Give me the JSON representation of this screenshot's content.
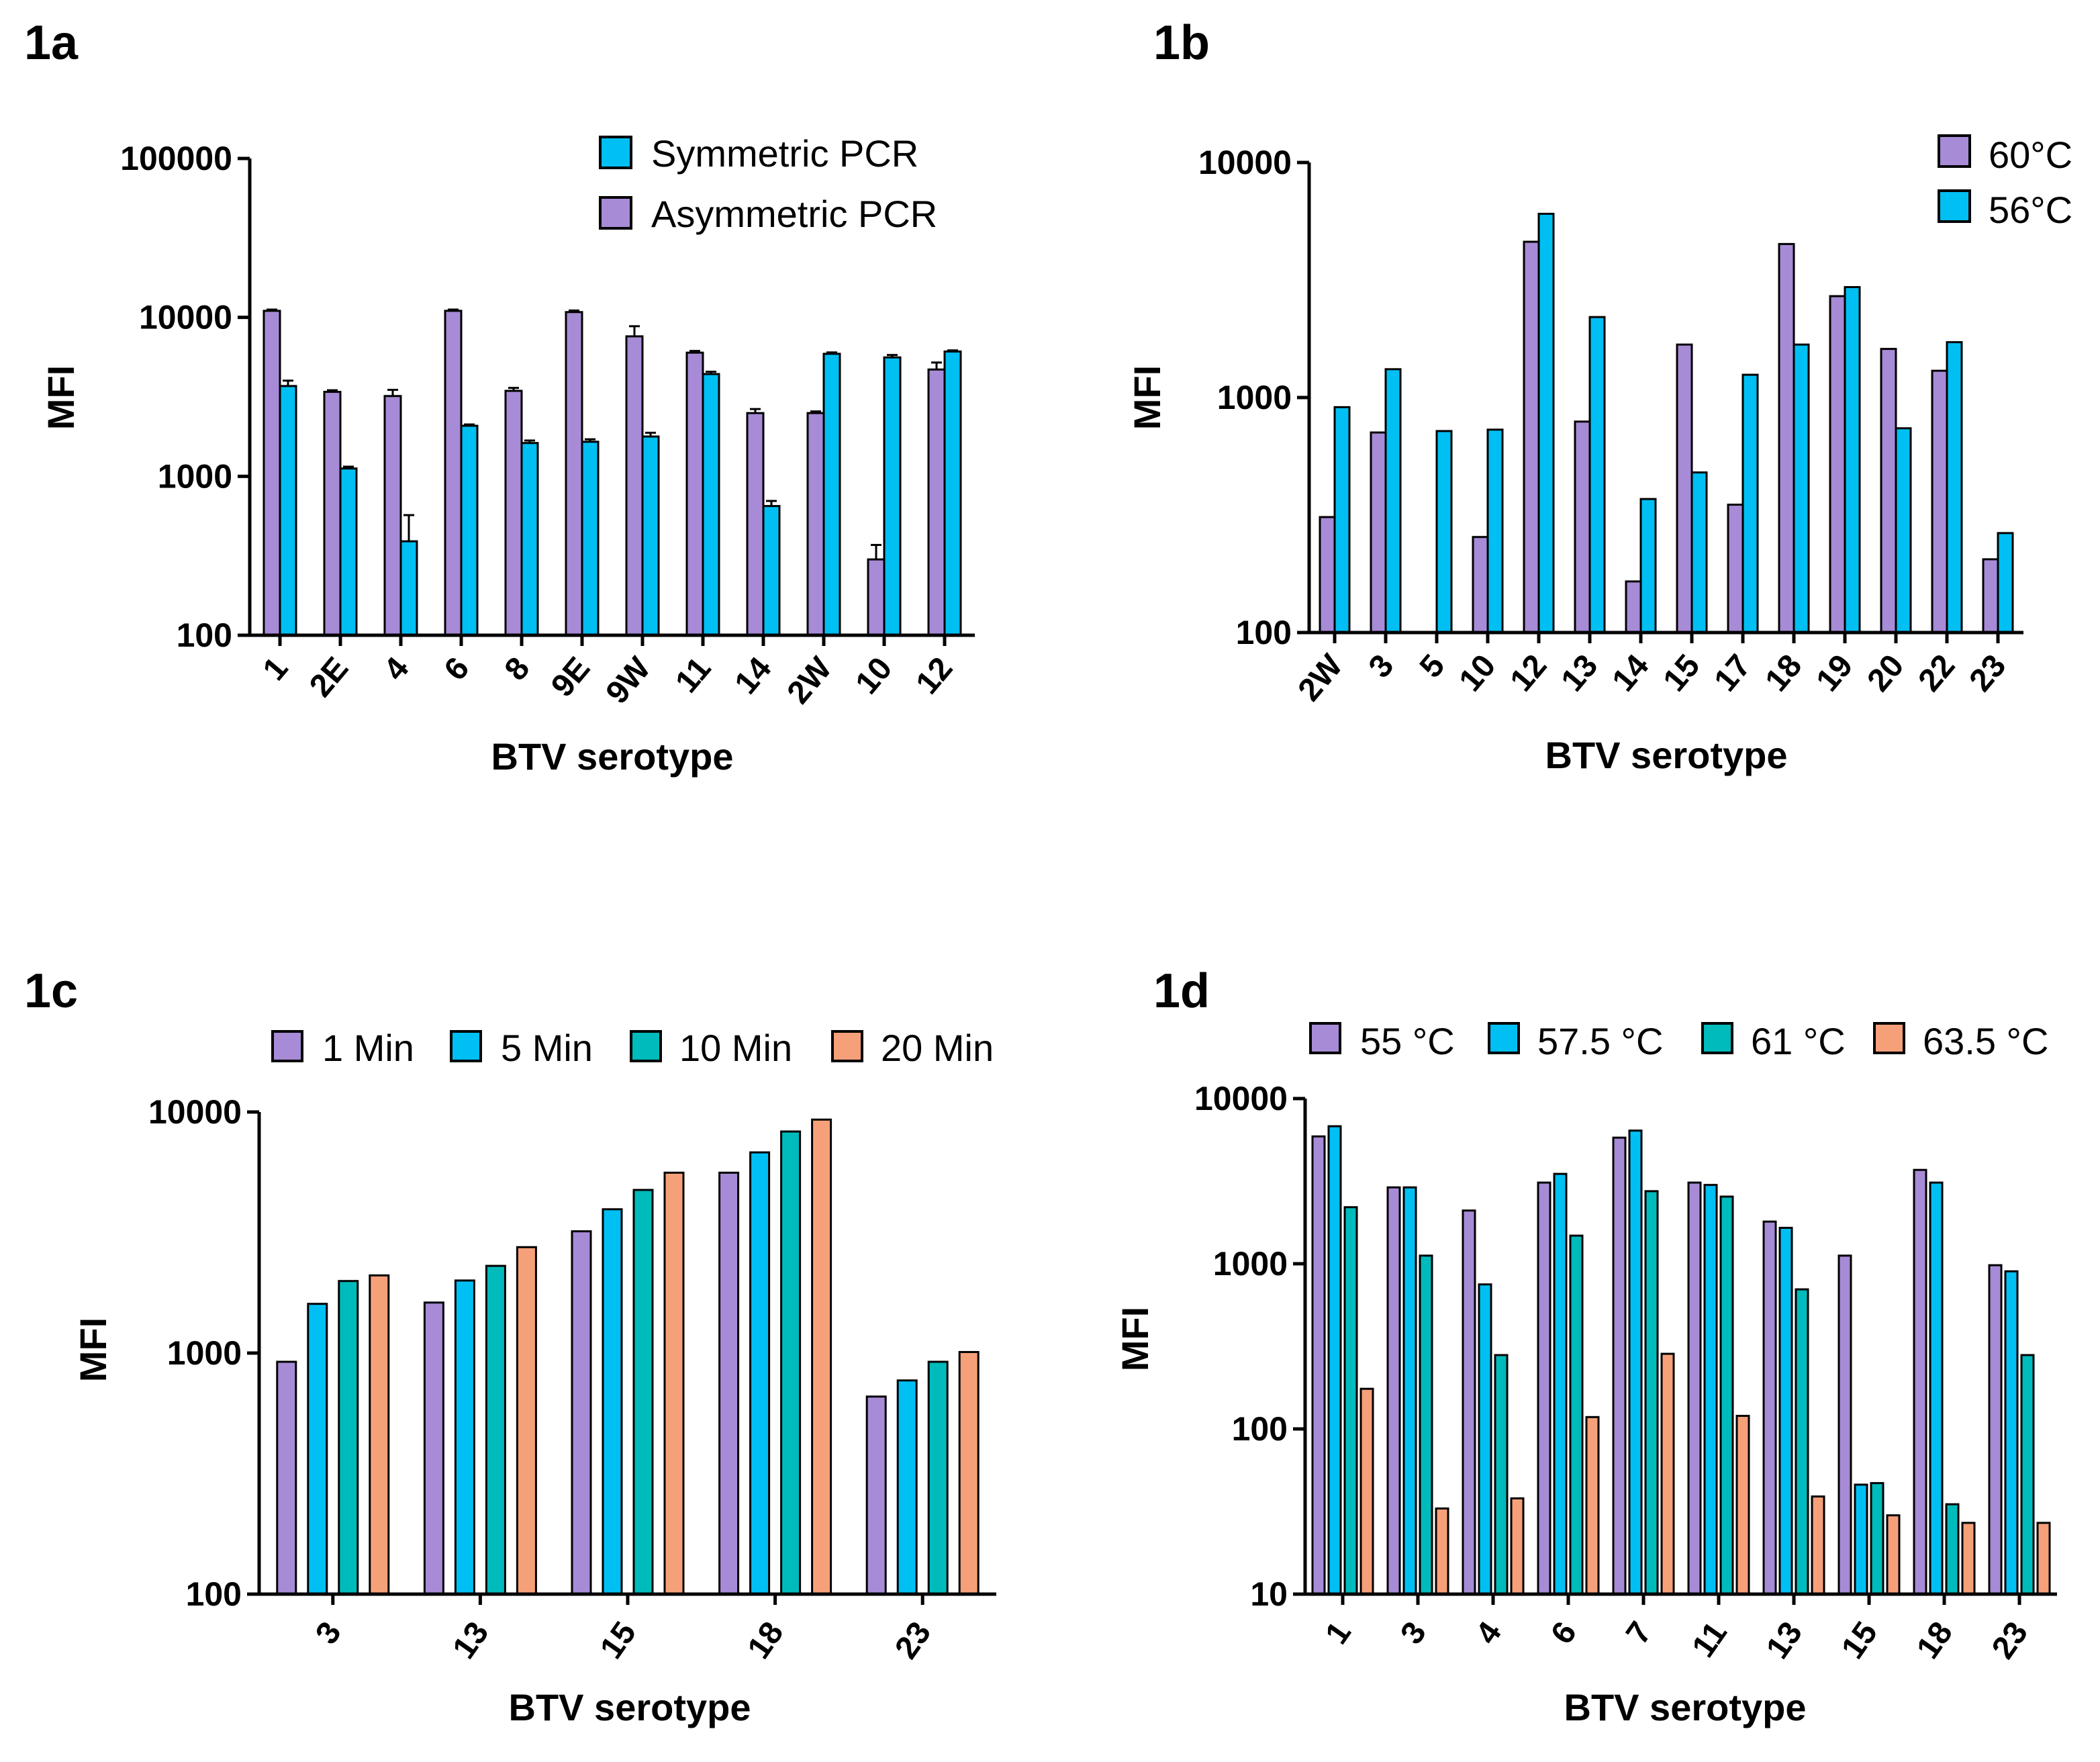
{
  "colors": {
    "purple": "#a78bd6",
    "blue": "#00bff3",
    "teal": "#00bbbb",
    "salmon": "#f6a07a",
    "axis": "#000000"
  },
  "chart_data": [
    {
      "panel": "1a",
      "type": "bar",
      "yscale": "log",
      "ylim": [
        100,
        100000
      ],
      "yticks": [
        "100",
        "1000",
        "10000",
        "100000"
      ],
      "ylabel": "MFI",
      "xlabel": "BTV serotype",
      "legend": "top-right",
      "categories": [
        "1",
        "2E",
        "4",
        "6",
        "8",
        "9E",
        "9W",
        "11",
        "14",
        "2W",
        "10",
        "12"
      ],
      "series": [
        {
          "name": "Asymmetric PCR",
          "color": "purple",
          "values": [
            11000,
            3400,
            3200,
            11000,
            3450,
            10800,
            7600,
            6000,
            2500,
            2500,
            300,
            4700
          ],
          "errors": [
            200,
            80,
            300,
            200,
            150,
            250,
            1200,
            150,
            150,
            60,
            70,
            500
          ]
        },
        {
          "name": "Symmetric PCR",
          "color": "blue",
          "values": [
            3700,
            1120,
            390,
            2080,
            1620,
            1650,
            1780,
            4400,
            650,
            5900,
            5600,
            6100
          ],
          "errors": [
            300,
            30,
            180,
            40,
            60,
            60,
            100,
            150,
            50,
            120,
            200,
            100
          ]
        }
      ],
      "legend_order": [
        1,
        0
      ]
    },
    {
      "panel": "1b",
      "type": "bar",
      "yscale": "log",
      "ylim": [
        100,
        10000
      ],
      "yticks": [
        "100",
        "1000",
        "10000"
      ],
      "ylabel": "MFI",
      "xlabel": "BTV serotype",
      "legend": "top-right",
      "categories": [
        "2W",
        "3",
        "5",
        "10",
        "12",
        "13",
        "14",
        "15",
        "17",
        "18",
        "19",
        "20",
        "22",
        "23"
      ],
      "series": [
        {
          "name": "60°C",
          "color": "purple",
          "values": [
            310,
            710,
            100,
            255,
            4600,
            790,
            165,
            1680,
            350,
            4500,
            2700,
            1610,
            1300,
            205
          ]
        },
        {
          "name": "56°C",
          "color": "blue",
          "values": [
            910,
            1320,
            720,
            730,
            6050,
            2200,
            370,
            480,
            1250,
            1680,
            2950,
            740,
            1720,
            265
          ]
        }
      ],
      "legend_order": [
        0,
        1
      ]
    },
    {
      "panel": "1c",
      "type": "bar",
      "yscale": "log",
      "ylim": [
        100,
        10000
      ],
      "yticks": [
        "100",
        "1000",
        "10000"
      ],
      "ylabel": "MFI",
      "xlabel": "BTV serotype",
      "legend": "top",
      "categories": [
        "3",
        "13",
        "15",
        "18",
        "23"
      ],
      "series": [
        {
          "name": "1 Min",
          "color": "purple",
          "values": [
            920,
            1620,
            3200,
            5600,
            660
          ]
        },
        {
          "name": "5 Min",
          "color": "blue",
          "values": [
            1600,
            2000,
            3950,
            6800,
            770
          ]
        },
        {
          "name": "10 Min",
          "color": "teal",
          "values": [
            1990,
            2300,
            4750,
            8300,
            920
          ]
        },
        {
          "name": "20 Min",
          "color": "salmon",
          "values": [
            2100,
            2750,
            5600,
            9300,
            1010
          ]
        }
      ],
      "legend_order": [
        0,
        1,
        2,
        3
      ]
    },
    {
      "panel": "1d",
      "type": "bar",
      "yscale": "log",
      "ylim": [
        10,
        10000
      ],
      "yticks": [
        "10",
        "100",
        "1000",
        "10000"
      ],
      "ylabel": "MFI",
      "xlabel": "BTV serotype",
      "legend": "top",
      "categories": [
        "1",
        "3",
        "4",
        "6",
        "7",
        "11",
        "13",
        "15",
        "18",
        "23"
      ],
      "series": [
        {
          "name": "55 °C",
          "color": "purple",
          "values": [
            5900,
            2900,
            2100,
            3100,
            5800,
            3100,
            1800,
            1120,
            3700,
            980
          ]
        },
        {
          "name": "57.5 °C",
          "color": "blue",
          "values": [
            6800,
            2900,
            750,
            3500,
            6400,
            3000,
            1650,
            46,
            3100,
            900
          ]
        },
        {
          "name": "61 °C",
          "color": "teal",
          "values": [
            2200,
            1120,
            280,
            1480,
            2750,
            2550,
            700,
            47,
            35,
            280
          ]
        },
        {
          "name": "63.5 °C",
          "color": "salmon",
          "values": [
            175,
            33,
            38,
            118,
            285,
            120,
            39,
            30,
            27,
            27
          ]
        }
      ],
      "legend_order": [
        0,
        1,
        2,
        3
      ]
    }
  ]
}
